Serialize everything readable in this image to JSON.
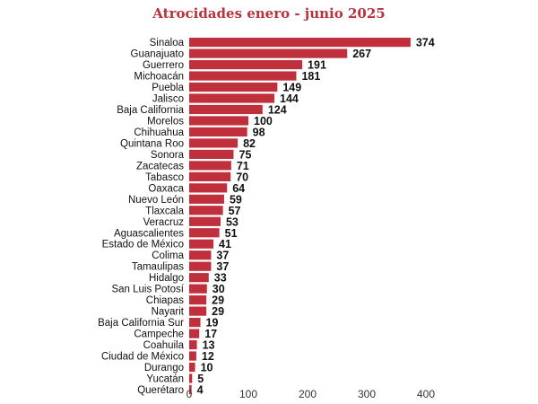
{
  "chart_data": {
    "type": "bar",
    "orientation": "horizontal",
    "title": "Atrocidades enero - junio 2025",
    "categories": [
      "Sinaloa",
      "Guanajuato",
      "Guerrero",
      "Michoacán",
      "Puebla",
      "Jalisco",
      "Baja California",
      "Morelos",
      "Chihuahua",
      "Quintana Roo",
      "Sonora",
      "Zacatecas",
      "Tabasco",
      "Oaxaca",
      "Nuevo León",
      "Tlaxcala",
      "Veracruz",
      "Aguascalientes",
      "Estado de México",
      "Colima",
      "Tamaulipas",
      "Hidalgo",
      "San Luis Potosí",
      "Chiapas",
      "Nayarit",
      "Baja California Sur",
      "Campeche",
      "Coahuila",
      "Ciudad de México",
      "Durango",
      "Yucatán",
      "Querétaro"
    ],
    "values": [
      374,
      267,
      191,
      181,
      149,
      144,
      124,
      100,
      98,
      82,
      75,
      71,
      70,
      64,
      59,
      57,
      53,
      51,
      41,
      37,
      37,
      33,
      30,
      29,
      29,
      19,
      17,
      13,
      12,
      10,
      5,
      4
    ],
    "xlim": [
      0,
      400
    ],
    "xticks": [
      0,
      100,
      200,
      300,
      400
    ],
    "grid": false,
    "bar_color": "#c0303c",
    "title_color": "#b8323f"
  }
}
